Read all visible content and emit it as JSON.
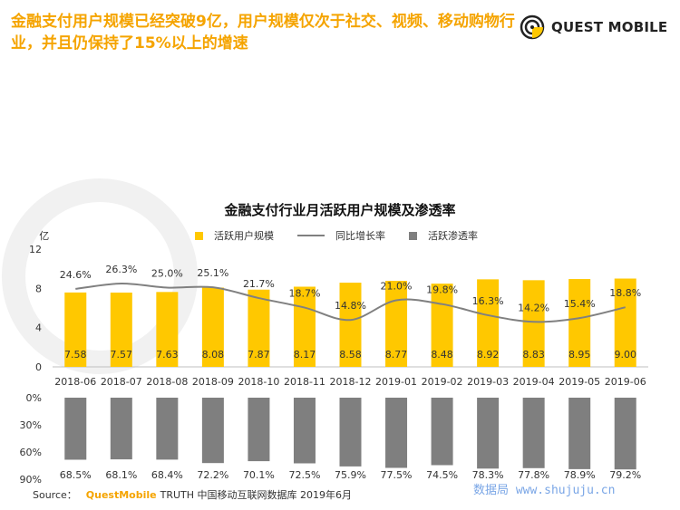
{
  "headline": "金融支付用户规模已经突破9亿，用户规模仅次于社交、视频、移动购物行业，并且仍保持了15%以上的增速",
  "logo": {
    "text": "QUEST MOBILE",
    "icon": "questmobile-logo-icon"
  },
  "watermark_text": "数据局 www.shujuju.cn",
  "source": {
    "label": "Source：",
    "brand": "QuestMobile",
    "text": "TRUTH 中国移动互联网数据库 2019年6月"
  },
  "colors": {
    "bar": "#ffc800",
    "line": "#808080",
    "penetration": "#7f7f7f",
    "accent": "#f5a400"
  },
  "chart_data": {
    "type": "bar",
    "title": "金融支付行业月活跃用户规模及渗透率",
    "unit_label": "单位: 亿",
    "legend_position": "top",
    "categories": [
      "2018-06",
      "2018-07",
      "2018-08",
      "2018-09",
      "2018-10",
      "2018-11",
      "2018-12",
      "2019-01",
      "2019-02",
      "2019-03",
      "2019-04",
      "2019-05",
      "2019-06"
    ],
    "series": [
      {
        "name": "活跃用户规模",
        "type": "bar",
        "values": [
          7.58,
          7.57,
          7.63,
          8.08,
          7.87,
          8.17,
          8.58,
          8.77,
          8.48,
          8.92,
          8.83,
          8.95,
          9.0
        ],
        "labels": [
          "7.58",
          "7.57",
          "7.63",
          "8.08",
          "7.87",
          "8.17",
          "8.58",
          "8.77",
          "8.48",
          "8.92",
          "8.83",
          "8.95",
          "9.00"
        ]
      },
      {
        "name": "同比增长率",
        "type": "line",
        "values": [
          24.6,
          26.3,
          25.0,
          25.1,
          21.7,
          18.7,
          14.8,
          21.0,
          19.8,
          16.3,
          14.2,
          15.4,
          18.8
        ],
        "labels": [
          "24.6%",
          "26.3%",
          "25.0%",
          "25.1%",
          "21.7%",
          "18.7%",
          "14.8%",
          "21.0%",
          "19.8%",
          "16.3%",
          "14.2%",
          "15.4%",
          "18.8%"
        ]
      },
      {
        "name": "活跃渗透率",
        "type": "bar",
        "values": [
          68.5,
          68.1,
          68.4,
          72.2,
          70.1,
          72.5,
          75.9,
          77.5,
          74.5,
          78.3,
          77.8,
          78.9,
          79.2
        ],
        "labels": [
          "68.5%",
          "68.1%",
          "68.4%",
          "72.2%",
          "70.1%",
          "72.5%",
          "75.9%",
          "77.5%",
          "74.5%",
          "78.3%",
          "77.8%",
          "78.9%",
          "79.2%"
        ]
      }
    ],
    "y_top": {
      "ticks": [
        "0",
        "4",
        "8",
        "12"
      ],
      "ylim": [
        0,
        12
      ]
    },
    "y_bottom": {
      "ticks": [
        "0%",
        "30%",
        "60%",
        "90%"
      ],
      "ylim": [
        0,
        90
      ],
      "inverted": true
    }
  }
}
